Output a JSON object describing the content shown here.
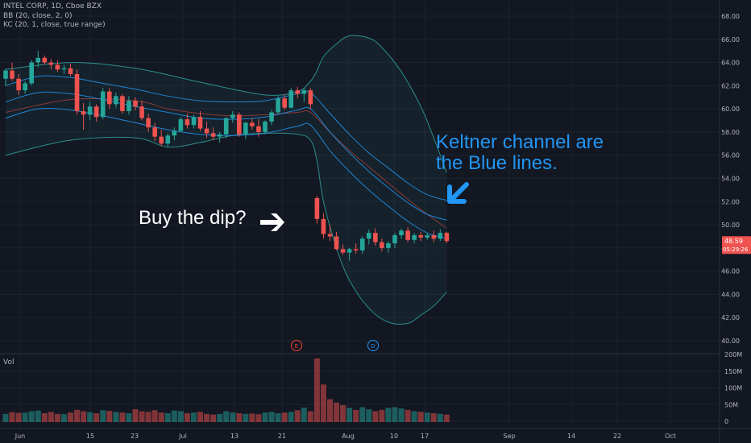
{
  "legend": {
    "symbol": "INTEL CORP, 1D, Cboe BZX",
    "bb": "BB (20, close, 2, 0)",
    "kc": "KC (20, 1, close, true range)"
  },
  "volume_label": "Vol",
  "annotations": {
    "buy_the_dip": "Buy the dip?",
    "keltner_line1": "Keltner channel are",
    "keltner_line2": "the Blue lines."
  },
  "price_badge": {
    "price": "48.59",
    "countdown": "05:29:26"
  },
  "event_markers": [
    {
      "label": "E",
      "color": "#f44336"
    },
    {
      "label": "D",
      "color": "#2196f3"
    }
  ],
  "colors": {
    "up": "#26a69a",
    "down": "#ef5350",
    "bb_band": "#2a8f8c",
    "bb_basis": "#8a3a3a",
    "keltner": "#2196f3",
    "background": "#131722"
  },
  "chart_data": {
    "type": "candlestick",
    "x_ticks": [
      "Jun",
      "15",
      "23",
      "Jul",
      "13",
      "21",
      "Aug",
      "10",
      "17",
      "Sep",
      "14",
      "22",
      "Oct"
    ],
    "y_ticks": [
      "68.00",
      "66.00",
      "64.00",
      "62.00",
      "60.00",
      "58.00",
      "56.00",
      "54.00",
      "52.00",
      "50.00",
      "48.00",
      "46.00",
      "44.00",
      "42.00",
      "40.00"
    ],
    "volume_ticks": [
      "200M",
      "150M",
      "100M",
      "50M",
      "0"
    ],
    "ylim": [
      39.5,
      68.9
    ],
    "volume_max": 200,
    "candles": [
      {
        "o": 62.6,
        "h": 63.5,
        "l": 62.0,
        "c": 63.3
      },
      {
        "o": 63.3,
        "h": 64.0,
        "l": 62.4,
        "c": 62.6
      },
      {
        "o": 62.6,
        "h": 63.0,
        "l": 61.2,
        "c": 61.6
      },
      {
        "o": 61.6,
        "h": 62.4,
        "l": 61.3,
        "c": 62.2
      },
      {
        "o": 62.2,
        "h": 64.2,
        "l": 62.0,
        "c": 64.0
      },
      {
        "o": 64.0,
        "h": 65.0,
        "l": 63.6,
        "c": 64.4
      },
      {
        "o": 64.4,
        "h": 64.6,
        "l": 63.8,
        "c": 64.0
      },
      {
        "o": 64.0,
        "h": 64.3,
        "l": 63.4,
        "c": 63.8
      },
      {
        "o": 63.8,
        "h": 64.2,
        "l": 63.2,
        "c": 63.4
      },
      {
        "o": 63.4,
        "h": 63.8,
        "l": 63.0,
        "c": 63.5
      },
      {
        "o": 63.5,
        "h": 63.9,
        "l": 62.8,
        "c": 63.0
      },
      {
        "o": 63.0,
        "h": 63.4,
        "l": 59.5,
        "c": 59.8
      },
      {
        "o": 59.8,
        "h": 60.5,
        "l": 58.2,
        "c": 59.5
      },
      {
        "o": 59.5,
        "h": 60.6,
        "l": 59.0,
        "c": 60.2
      },
      {
        "o": 60.2,
        "h": 60.4,
        "l": 58.9,
        "c": 59.3
      },
      {
        "o": 59.3,
        "h": 61.8,
        "l": 59.1,
        "c": 61.5
      },
      {
        "o": 61.5,
        "h": 61.8,
        "l": 60.0,
        "c": 60.4
      },
      {
        "o": 60.4,
        "h": 61.4,
        "l": 60.1,
        "c": 61.1
      },
      {
        "o": 61.1,
        "h": 61.3,
        "l": 59.6,
        "c": 59.8
      },
      {
        "o": 59.8,
        "h": 61.1,
        "l": 59.5,
        "c": 60.7
      },
      {
        "o": 60.7,
        "h": 61.0,
        "l": 59.9,
        "c": 60.2
      },
      {
        "o": 60.2,
        "h": 60.7,
        "l": 59.0,
        "c": 59.2
      },
      {
        "o": 59.2,
        "h": 59.6,
        "l": 58.0,
        "c": 58.4
      },
      {
        "o": 58.4,
        "h": 58.8,
        "l": 57.2,
        "c": 57.6
      },
      {
        "o": 57.6,
        "h": 58.2,
        "l": 56.8,
        "c": 57.0
      },
      {
        "o": 57.0,
        "h": 57.9,
        "l": 56.7,
        "c": 57.7
      },
      {
        "o": 57.7,
        "h": 58.4,
        "l": 57.3,
        "c": 58.1
      },
      {
        "o": 58.1,
        "h": 59.3,
        "l": 58.0,
        "c": 59.1
      },
      {
        "o": 59.1,
        "h": 59.6,
        "l": 58.3,
        "c": 58.6
      },
      {
        "o": 58.6,
        "h": 59.5,
        "l": 58.3,
        "c": 59.3
      },
      {
        "o": 59.3,
        "h": 59.8,
        "l": 58.1,
        "c": 58.3
      },
      {
        "o": 58.3,
        "h": 58.9,
        "l": 57.5,
        "c": 57.9
      },
      {
        "o": 57.9,
        "h": 58.4,
        "l": 57.3,
        "c": 57.6
      },
      {
        "o": 57.6,
        "h": 58.0,
        "l": 57.1,
        "c": 57.8
      },
      {
        "o": 57.8,
        "h": 59.3,
        "l": 57.5,
        "c": 59.2
      },
      {
        "o": 59.2,
        "h": 59.8,
        "l": 58.8,
        "c": 59.5
      },
      {
        "o": 59.5,
        "h": 59.7,
        "l": 57.6,
        "c": 57.8
      },
      {
        "o": 57.8,
        "h": 58.9,
        "l": 57.4,
        "c": 58.8
      },
      {
        "o": 58.8,
        "h": 59.2,
        "l": 58.2,
        "c": 58.5
      },
      {
        "o": 58.5,
        "h": 59.1,
        "l": 57.6,
        "c": 58.0
      },
      {
        "o": 58.0,
        "h": 59.0,
        "l": 57.8,
        "c": 58.9
      },
      {
        "o": 58.9,
        "h": 59.9,
        "l": 58.6,
        "c": 59.7
      },
      {
        "o": 59.7,
        "h": 61.1,
        "l": 59.5,
        "c": 60.9
      },
      {
        "o": 60.9,
        "h": 61.2,
        "l": 59.9,
        "c": 60.1
      },
      {
        "o": 60.1,
        "h": 61.8,
        "l": 60.0,
        "c": 61.6
      },
      {
        "o": 61.6,
        "h": 61.9,
        "l": 60.9,
        "c": 61.3
      },
      {
        "o": 61.3,
        "h": 61.8,
        "l": 60.6,
        "c": 61.6
      },
      {
        "o": 61.6,
        "h": 61.8,
        "l": 60.0,
        "c": 60.4
      },
      {
        "o": 52.3,
        "h": 52.5,
        "l": 50.1,
        "c": 50.5
      },
      {
        "o": 50.5,
        "h": 51.0,
        "l": 48.8,
        "c": 49.2
      },
      {
        "o": 49.2,
        "h": 50.0,
        "l": 48.6,
        "c": 49.0
      },
      {
        "o": 49.0,
        "h": 49.4,
        "l": 47.8,
        "c": 47.9
      },
      {
        "o": 47.9,
        "h": 48.3,
        "l": 47.4,
        "c": 47.6
      },
      {
        "o": 47.6,
        "h": 48.0,
        "l": 46.9,
        "c": 47.9
      },
      {
        "o": 47.9,
        "h": 48.4,
        "l": 47.5,
        "c": 47.8
      },
      {
        "o": 47.8,
        "h": 49.0,
        "l": 47.5,
        "c": 48.8
      },
      {
        "o": 48.8,
        "h": 49.6,
        "l": 48.3,
        "c": 49.3
      },
      {
        "o": 49.3,
        "h": 49.7,
        "l": 48.2,
        "c": 48.5
      },
      {
        "o": 48.5,
        "h": 48.8,
        "l": 47.7,
        "c": 48.0
      },
      {
        "o": 48.0,
        "h": 48.6,
        "l": 47.6,
        "c": 48.4
      },
      {
        "o": 48.4,
        "h": 49.3,
        "l": 48.0,
        "c": 49.1
      },
      {
        "o": 49.1,
        "h": 49.7,
        "l": 48.8,
        "c": 49.5
      },
      {
        "o": 49.5,
        "h": 49.8,
        "l": 48.5,
        "c": 48.7
      },
      {
        "o": 48.7,
        "h": 49.3,
        "l": 48.4,
        "c": 49.1
      },
      {
        "o": 49.1,
        "h": 49.4,
        "l": 48.6,
        "c": 48.9
      },
      {
        "o": 48.9,
        "h": 49.3,
        "l": 48.7,
        "c": 49.1
      },
      {
        "o": 49.1,
        "h": 49.5,
        "l": 48.5,
        "c": 48.8
      },
      {
        "o": 48.8,
        "h": 49.6,
        "l": 48.6,
        "c": 49.3
      },
      {
        "o": 49.3,
        "h": 49.4,
        "l": 48.4,
        "c": 48.6
      }
    ],
    "volumes": [
      22,
      27,
      25,
      26,
      30,
      32,
      24,
      28,
      22,
      21,
      26,
      34,
      30,
      27,
      24,
      33,
      31,
      28,
      26,
      24,
      36,
      30,
      28,
      33,
      26,
      24,
      32,
      30,
      24,
      26,
      28,
      22,
      20,
      22,
      30,
      26,
      24,
      22,
      23,
      21,
      26,
      28,
      24,
      26,
      28,
      33,
      40,
      30,
      188,
      110,
      66,
      56,
      48,
      40,
      34,
      42,
      36,
      30,
      34,
      40,
      42,
      38,
      34,
      30,
      28,
      26,
      24,
      22,
      20
    ],
    "bb_upper": [
      [
        0,
        63.4
      ],
      [
        10,
        64.0
      ],
      [
        20,
        63.5
      ],
      [
        30,
        62.3
      ],
      [
        40,
        61.2
      ],
      [
        45,
        61.5
      ],
      [
        47,
        62.4
      ],
      [
        48,
        63.3
      ],
      [
        49,
        64.5
      ],
      [
        51,
        65.6
      ],
      [
        53,
        66.3
      ],
      [
        56,
        66.1
      ],
      [
        58,
        65.3
      ],
      [
        61,
        63.2
      ],
      [
        64,
        60.2
      ],
      [
        66,
        57.5
      ],
      [
        68,
        54.5
      ]
    ],
    "bb_lower": [
      [
        0,
        56.0
      ],
      [
        10,
        57.3
      ],
      [
        20,
        57.5
      ],
      [
        25,
        56.7
      ],
      [
        30,
        57.1
      ],
      [
        35,
        57.7
      ],
      [
        40,
        57.9
      ],
      [
        45,
        57.8
      ],
      [
        47,
        57.3
      ],
      [
        48,
        55.5
      ],
      [
        49,
        52.0
      ],
      [
        51,
        48.0
      ],
      [
        53,
        45.2
      ],
      [
        56,
        42.8
      ],
      [
        59,
        41.6
      ],
      [
        62,
        41.5
      ],
      [
        64,
        42.2
      ],
      [
        66,
        43.0
      ],
      [
        68,
        44.2
      ]
    ],
    "bb_basis": [
      [
        0,
        59.7
      ],
      [
        10,
        60.8
      ],
      [
        20,
        60.7
      ],
      [
        25,
        60.0
      ],
      [
        30,
        59.6
      ],
      [
        35,
        59.4
      ],
      [
        40,
        59.5
      ],
      [
        45,
        59.7
      ],
      [
        47,
        59.7
      ],
      [
        50,
        58.0
      ],
      [
        53,
        56.4
      ],
      [
        56,
        55.0
      ],
      [
        59,
        53.6
      ],
      [
        62,
        52.2
      ],
      [
        65,
        50.9
      ],
      [
        68,
        49.7
      ]
    ],
    "kc_upper": [
      [
        0,
        62.0
      ],
      [
        5,
        62.8
      ],
      [
        10,
        62.7
      ],
      [
        15,
        62.2
      ],
      [
        20,
        61.7
      ],
      [
        25,
        61.1
      ],
      [
        30,
        60.7
      ],
      [
        35,
        60.6
      ],
      [
        40,
        60.7
      ],
      [
        45,
        61.3
      ],
      [
        47,
        61.4
      ],
      [
        50,
        59.6
      ],
      [
        53,
        57.8
      ],
      [
        56,
        56.2
      ],
      [
        59,
        54.9
      ],
      [
        62,
        53.6
      ],
      [
        65,
        52.6
      ],
      [
        68,
        52.1
      ]
    ],
    "kc_mid": [
      [
        0,
        60.6
      ],
      [
        5,
        61.4
      ],
      [
        10,
        61.3
      ],
      [
        15,
        60.8
      ],
      [
        20,
        60.2
      ],
      [
        25,
        59.7
      ],
      [
        30,
        59.2
      ],
      [
        35,
        59.1
      ],
      [
        40,
        59.3
      ],
      [
        45,
        59.9
      ],
      [
        47,
        60.0
      ],
      [
        50,
        58.0
      ],
      [
        53,
        56.2
      ],
      [
        56,
        54.6
      ],
      [
        59,
        53.2
      ],
      [
        62,
        51.9
      ],
      [
        65,
        50.9
      ],
      [
        68,
        50.4
      ]
    ],
    "kc_lower": [
      [
        0,
        59.2
      ],
      [
        5,
        60.0
      ],
      [
        10,
        59.9
      ],
      [
        15,
        59.4
      ],
      [
        20,
        58.8
      ],
      [
        25,
        58.2
      ],
      [
        30,
        57.8
      ],
      [
        35,
        57.7
      ],
      [
        40,
        57.9
      ],
      [
        45,
        58.5
      ],
      [
        47,
        58.6
      ],
      [
        50,
        56.4
      ],
      [
        53,
        54.6
      ],
      [
        56,
        53.0
      ],
      [
        59,
        51.6
      ],
      [
        62,
        50.3
      ],
      [
        65,
        49.3
      ],
      [
        68,
        48.8
      ]
    ]
  }
}
